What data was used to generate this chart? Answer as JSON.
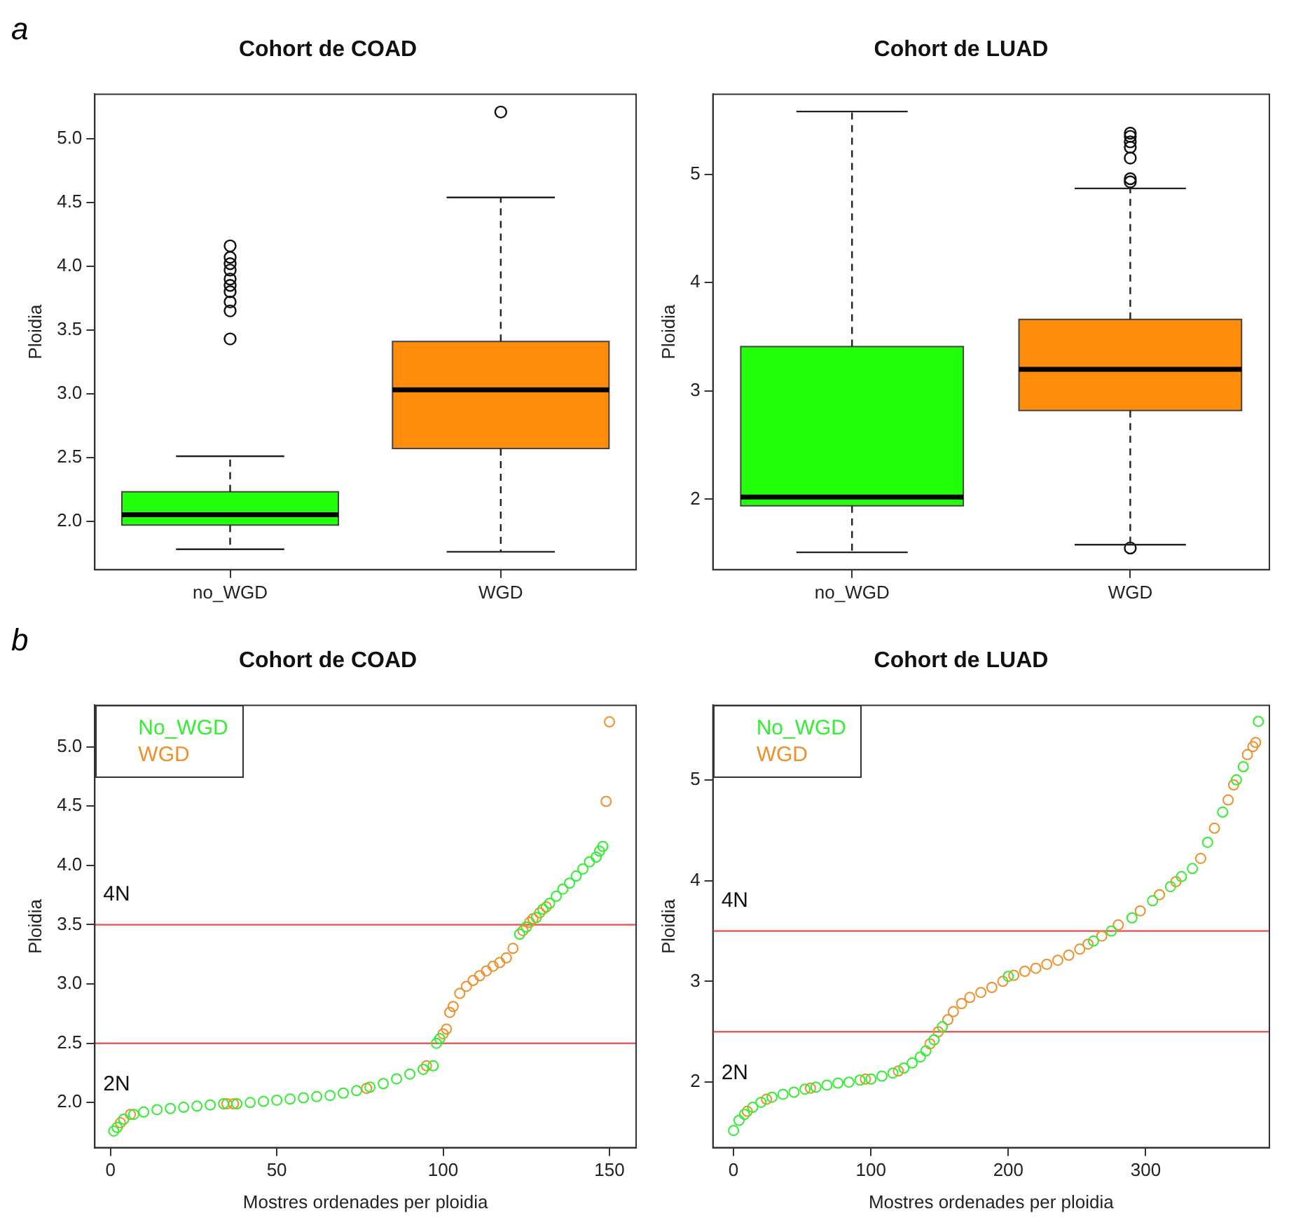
{
  "chart_data": [
    {
      "type": "box",
      "title": "Cohort de COAD",
      "ylabel": "Ploidia",
      "annotations": [
        "a"
      ],
      "categories": [
        "no_WGD",
        "WGD"
      ],
      "colors": [
        "#22ff0a",
        "#ff8c0a"
      ],
      "boxes": [
        {
          "low": 1.78,
          "q1": 1.97,
          "median": 2.05,
          "q3": 2.23,
          "high": 2.51,
          "outliers": [
            3.43,
            3.65,
            3.72,
            3.8,
            3.85,
            3.9,
            3.97,
            4.02,
            4.07,
            4.16
          ]
        },
        {
          "low": 1.76,
          "q1": 2.57,
          "median": 3.03,
          "q3": 3.41,
          "high": 4.54,
          "outliers": [
            5.21
          ]
        }
      ],
      "ylim": [
        1.62,
        5.35
      ],
      "yticks": [
        {
          "value": 2,
          "label": "2.0"
        },
        {
          "value": 2.5,
          "label": "2.5"
        },
        {
          "value": 3,
          "label": "3.0"
        },
        {
          "value": 3.5,
          "label": "3.5"
        },
        {
          "value": 4,
          "label": "4.0"
        },
        {
          "value": 4.5,
          "label": "4.5"
        },
        {
          "value": 5,
          "label": "5.0"
        }
      ]
    },
    {
      "type": "box",
      "title": "Cohort de LUAD",
      "ylabel": "Ploidia",
      "categories": [
        "no_WGD",
        "WGD"
      ],
      "colors": [
        "#22ff0a",
        "#ff8c0a"
      ],
      "boxes": [
        {
          "low": 1.51,
          "q1": 1.94,
          "median": 2.02,
          "q3": 3.41,
          "high": 5.58
        },
        {
          "low": 1.58,
          "q1": 2.82,
          "median": 3.2,
          "q3": 3.66,
          "high": 4.87,
          "outliers": [
            1.55,
            4.93,
            4.96,
            5.15,
            5.25,
            5.3,
            5.35,
            5.38
          ]
        }
      ],
      "ylim": [
        1.35,
        5.74
      ],
      "yticks": [
        2,
        3,
        4,
        5
      ]
    },
    {
      "type": "scatter",
      "title": "Cohort de COAD",
      "xlabel": "Mostres ordenades per ploidia",
      "ylabel": "Ploidia",
      "legend": "top left",
      "marker": "circle",
      "annotations": [
        "b"
      ],
      "series": [
        {
          "name": "No_WGD",
          "color": "#33ee33",
          "x": [
            1,
            2,
            4,
            7,
            10,
            14,
            18,
            22,
            26,
            30,
            34,
            38,
            42,
            46,
            50,
            54,
            58,
            62,
            66,
            70,
            74,
            78,
            82,
            86,
            90,
            94,
            97,
            98,
            99,
            123,
            125,
            128,
            130,
            132,
            134,
            136,
            138,
            140,
            142,
            144,
            146,
            147,
            148
          ],
          "values": [
            1.76,
            1.79,
            1.86,
            1.9,
            1.92,
            1.94,
            1.95,
            1.96,
            1.97,
            1.98,
            1.99,
            1.99,
            2.0,
            2.01,
            2.02,
            2.03,
            2.04,
            2.05,
            2.06,
            2.08,
            2.1,
            2.13,
            2.16,
            2.2,
            2.24,
            2.28,
            2.31,
            2.5,
            2.54,
            3.42,
            3.48,
            3.56,
            3.63,
            3.68,
            3.74,
            3.8,
            3.85,
            3.91,
            3.97,
            4.03,
            4.07,
            4.12,
            4.16
          ]
        },
        {
          "name": "WGD",
          "color": "#f0902a",
          "x": [
            3,
            6,
            35,
            37,
            77,
            95,
            100,
            101,
            102,
            103,
            105,
            107,
            109,
            111,
            113,
            115,
            117,
            119,
            121,
            124,
            126,
            127,
            129,
            131,
            149,
            150
          ],
          "values": [
            1.83,
            1.9,
            1.99,
            1.99,
            2.12,
            2.31,
            2.58,
            2.62,
            2.76,
            2.81,
            2.92,
            2.98,
            3.03,
            3.07,
            3.11,
            3.15,
            3.18,
            3.22,
            3.3,
            3.45,
            3.52,
            3.55,
            3.6,
            3.65,
            4.54,
            5.21
          ]
        }
      ],
      "ref_lines": [
        {
          "axis": "y",
          "value": 2.5,
          "color": "#e06060",
          "label": "2N"
        },
        {
          "axis": "y",
          "value": 3.5,
          "color": "#e06060",
          "label": "4N"
        }
      ],
      "xlim": [
        -4.7,
        158
      ],
      "xticks": [
        0,
        50,
        100,
        150
      ],
      "ylim": [
        1.62,
        5.35
      ],
      "yticks": [
        {
          "value": 2,
          "label": "2.0"
        },
        {
          "value": 2.5,
          "label": "2.5"
        },
        {
          "value": 3,
          "label": "3.0"
        },
        {
          "value": 3.5,
          "label": "3.5"
        },
        {
          "value": 4,
          "label": "4.0"
        },
        {
          "value": 4.5,
          "label": "4.5"
        },
        {
          "value": 5,
          "label": "5.0"
        }
      ]
    },
    {
      "type": "scatter",
      "title": "Cohort de LUAD",
      "xlabel": "Mostres ordenades per ploidia",
      "ylabel": "Ploidia",
      "legend": "top left",
      "marker": "circle",
      "series": [
        {
          "name": "No_WGD",
          "color": "#33ee33",
          "x": [
            0,
            4,
            8,
            14,
            20,
            28,
            36,
            44,
            52,
            60,
            68,
            76,
            84,
            92,
            100,
            108,
            116,
            124,
            130,
            136,
            140,
            146,
            152,
            200,
            262,
            275,
            290,
            305,
            318,
            326,
            334,
            345,
            356,
            366,
            371,
            382
          ],
          "values": [
            1.52,
            1.62,
            1.68,
            1.75,
            1.8,
            1.85,
            1.88,
            1.9,
            1.93,
            1.95,
            1.97,
            1.99,
            2.0,
            2.02,
            2.03,
            2.06,
            2.09,
            2.14,
            2.19,
            2.25,
            2.31,
            2.42,
            2.55,
            3.05,
            3.4,
            3.5,
            3.63,
            3.8,
            3.94,
            4.04,
            4.12,
            4.38,
            4.68,
            5.0,
            5.13,
            5.58
          ]
        },
        {
          "name": "WGD",
          "color": "#f0902a",
          "x": [
            10,
            24,
            56,
            96,
            120,
            143,
            149,
            156,
            160,
            166,
            172,
            180,
            188,
            196,
            204,
            212,
            220,
            228,
            236,
            244,
            252,
            258,
            268,
            280,
            296,
            310,
            322,
            340,
            350,
            360,
            364,
            374,
            378,
            380
          ],
          "values": [
            1.71,
            1.83,
            1.94,
            2.03,
            2.11,
            2.38,
            2.5,
            2.62,
            2.7,
            2.78,
            2.84,
            2.89,
            2.94,
            3.0,
            3.06,
            3.1,
            3.13,
            3.17,
            3.21,
            3.26,
            3.32,
            3.37,
            3.45,
            3.56,
            3.7,
            3.86,
            3.99,
            4.22,
            4.52,
            4.8,
            4.95,
            5.25,
            5.33,
            5.37
          ]
        }
      ],
      "ref_lines": [
        {
          "axis": "y",
          "value": 2.5,
          "color": "#e06060",
          "label": "2N"
        },
        {
          "axis": "y",
          "value": 3.5,
          "color": "#e06060",
          "label": "4N"
        }
      ],
      "xlim": [
        -15,
        390
      ],
      "xticks": [
        0,
        100,
        200,
        300
      ],
      "ylim": [
        1.35,
        5.74
      ],
      "yticks": [
        2,
        3,
        4,
        5
      ]
    }
  ]
}
